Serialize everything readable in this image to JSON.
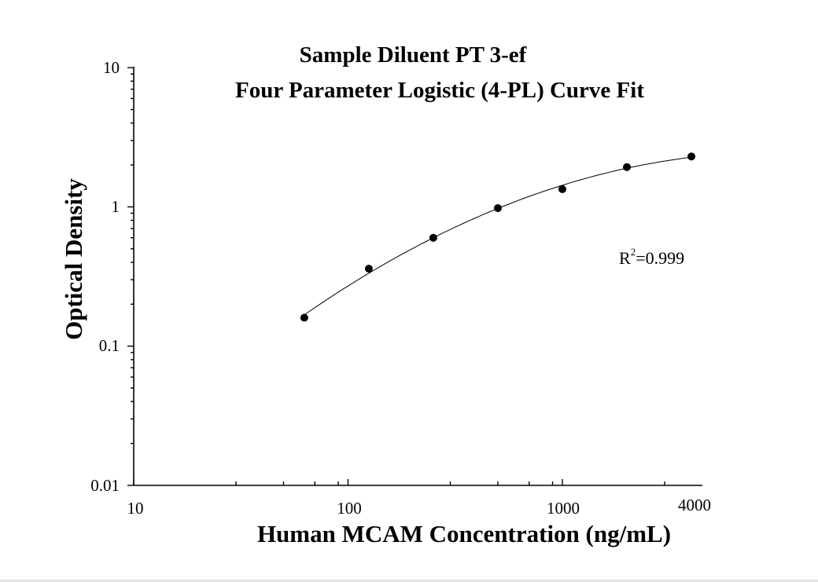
{
  "chart_data": {
    "type": "scatter",
    "title": "Sample Diluent PT 3-ef",
    "subtitle": "Four Parameter Logistic (4-PL) Curve Fit",
    "xlabel": "Human MCAM Concentration (ng/mL)",
    "ylabel": "Optical Density",
    "x_scale": "log",
    "y_scale": "log",
    "xlim": [
      10,
      4000
    ],
    "ylim": [
      0.01,
      10
    ],
    "x_tick_labels": [
      "10",
      "100",
      "1000",
      "4000"
    ],
    "y_tick_labels": [
      "10",
      "1",
      "0.1",
      "0.01"
    ],
    "series": [
      {
        "x": [
          62.5,
          125,
          250,
          500,
          1000,
          2000,
          4000
        ],
        "y": [
          0.16,
          0.36,
          0.6,
          0.98,
          1.34,
          1.93,
          2.3
        ]
      }
    ],
    "fit": {
      "model": "4-PL"
    },
    "annotation": {
      "r_label": "R",
      "r_sup": "2",
      "r_value": "=0.999"
    },
    "grid": false,
    "legend": "none",
    "colors": {
      "marker": "#000000",
      "line": "#000000"
    }
  }
}
